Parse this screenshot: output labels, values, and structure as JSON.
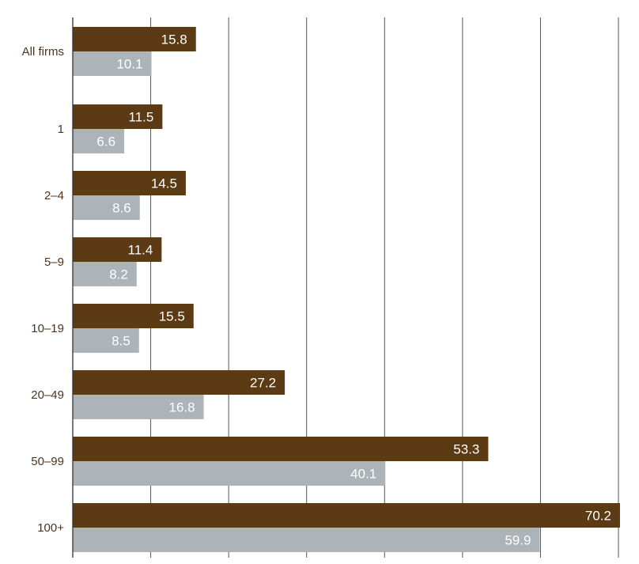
{
  "chart_data": {
    "type": "bar",
    "orientation": "horizontal",
    "categories": [
      "All firms",
      "1",
      "2–4",
      "5–9",
      "10–19",
      "20–49",
      "50–99",
      "100+"
    ],
    "series": [
      {
        "values": [
          15.8,
          11.5,
          14.5,
          11.4,
          15.5,
          27.2,
          53.3,
          70.2
        ],
        "color": "#5c3a14"
      },
      {
        "values": [
          10.1,
          6.6,
          8.6,
          8.2,
          8.5,
          16.8,
          40.1,
          59.9
        ],
        "color": "#adb4b9"
      }
    ],
    "xlim": [
      0,
      70
    ],
    "x_grid_step": 10,
    "grid": true,
    "legend": "none"
  }
}
